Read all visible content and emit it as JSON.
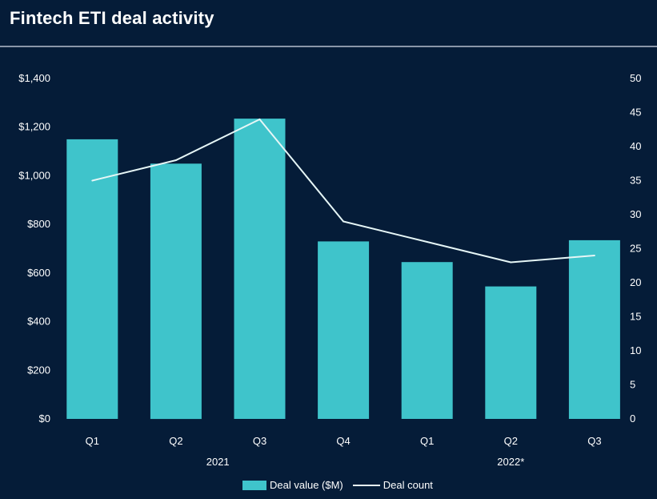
{
  "page": {
    "title": "Fintech ETI deal activity"
  },
  "colors": {
    "background": "#051c38",
    "bar": "#3fc4cb",
    "line": "#e6f6f6",
    "text": "#ffffff"
  },
  "chart_data": {
    "type": "bar",
    "title": "Fintech ETI deal activity",
    "categories": [
      "Q1",
      "Q2",
      "Q3",
      "Q4",
      "Q1",
      "Q2",
      "Q3"
    ],
    "groups": [
      {
        "label": "2021",
        "span": 4
      },
      {
        "label": "2022*",
        "span": 3
      }
    ],
    "series": [
      {
        "name": "Deal value ($M)",
        "type": "bar",
        "axis": "left",
        "values": [
          1150,
          1050,
          1235,
          730,
          645,
          545,
          735
        ]
      },
      {
        "name": "Deal count",
        "type": "line",
        "axis": "right",
        "values": [
          35,
          38,
          44,
          29,
          26,
          23,
          24
        ]
      }
    ],
    "y_left": {
      "ylim": [
        0,
        1400
      ],
      "ticks": [
        0,
        200,
        400,
        600,
        800,
        1000,
        1200,
        1400
      ],
      "tick_labels": [
        "$0",
        "$200",
        "$400",
        "$600",
        "$800",
        "$1,000",
        "$1,200",
        "$1,400"
      ]
    },
    "y_right": {
      "ylim": [
        0,
        50
      ],
      "ticks": [
        0,
        5,
        10,
        15,
        20,
        25,
        30,
        35,
        40,
        45,
        50
      ],
      "tick_labels": [
        "0",
        "5",
        "10",
        "15",
        "20",
        "25",
        "30",
        "35",
        "40",
        "45",
        "50"
      ]
    },
    "grid": false,
    "legend": {
      "placement": "bottom-center",
      "entries": [
        "Deal value ($M)",
        "Deal count"
      ]
    }
  }
}
